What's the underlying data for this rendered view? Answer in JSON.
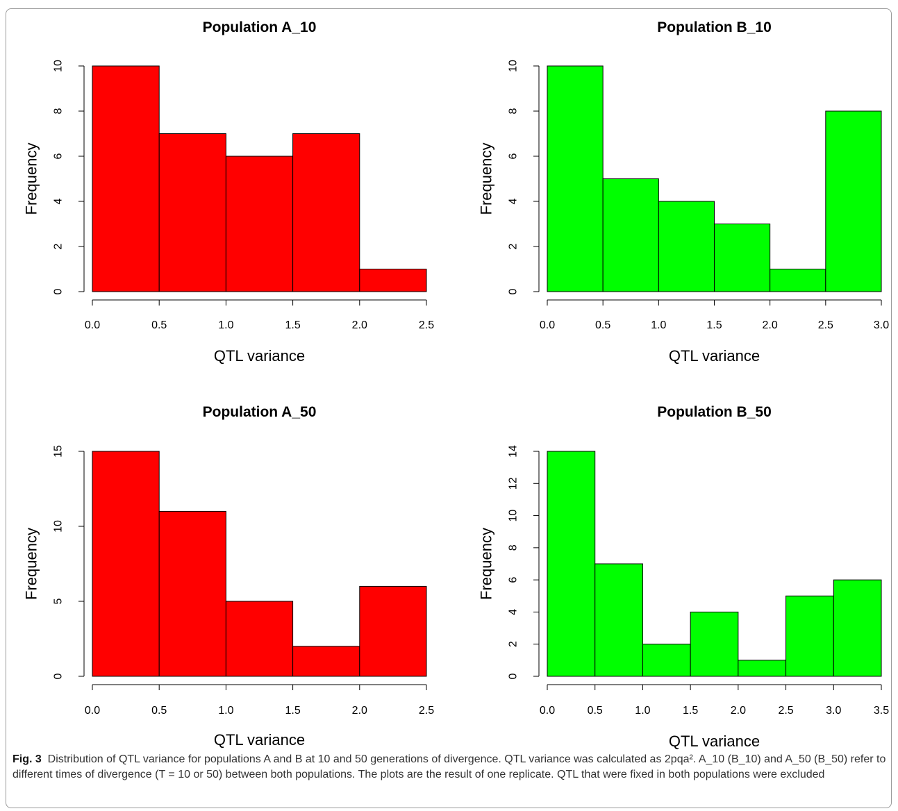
{
  "chart_data": [
    {
      "id": "a10",
      "type": "bar",
      "title": "Population A_10",
      "xlabel": "QTL variance",
      "ylabel": "Frequency",
      "bins": [
        [
          0.0,
          0.5
        ],
        [
          0.5,
          1.0
        ],
        [
          1.0,
          1.5
        ],
        [
          1.5,
          2.0
        ],
        [
          2.0,
          2.5
        ]
      ],
      "values": [
        10,
        7,
        6,
        7,
        1
      ],
      "xlim": [
        0,
        2.5
      ],
      "ylim": [
        0,
        10
      ],
      "xticks": [
        "0.0",
        "0.5",
        "1.0",
        "1.5",
        "2.0",
        "2.5"
      ],
      "yticks": [
        "0",
        "2",
        "4",
        "6",
        "8",
        "10"
      ],
      "color": "#ff0000"
    },
    {
      "id": "b10",
      "type": "bar",
      "title": "Population B_10",
      "xlabel": "QTL variance",
      "ylabel": "Frequency",
      "bins": [
        [
          0.0,
          0.5
        ],
        [
          0.5,
          1.0
        ],
        [
          1.0,
          1.5
        ],
        [
          1.5,
          2.0
        ],
        [
          2.0,
          2.5
        ],
        [
          2.5,
          3.0
        ]
      ],
      "values": [
        10,
        5,
        4,
        3,
        1,
        8
      ],
      "xlim": [
        0,
        3.0
      ],
      "ylim": [
        0,
        10
      ],
      "xticks": [
        "0.0",
        "0.5",
        "1.0",
        "1.5",
        "2.0",
        "2.5",
        "3.0"
      ],
      "yticks": [
        "0",
        "2",
        "4",
        "6",
        "8",
        "10"
      ],
      "color": "#00ff00"
    },
    {
      "id": "a50",
      "type": "bar",
      "title": "Population A_50",
      "xlabel": "QTL variance",
      "ylabel": "Frequency",
      "bins": [
        [
          0.0,
          0.5
        ],
        [
          0.5,
          1.0
        ],
        [
          1.0,
          1.5
        ],
        [
          1.5,
          2.0
        ],
        [
          2.0,
          2.5
        ]
      ],
      "values": [
        15,
        11,
        5,
        2,
        6
      ],
      "xlim": [
        0,
        2.5
      ],
      "ylim": [
        0,
        15
      ],
      "xticks": [
        "0.0",
        "0.5",
        "1.0",
        "1.5",
        "2.0",
        "2.5"
      ],
      "yticks": [
        "0",
        "5",
        "10",
        "15"
      ],
      "color": "#ff0000"
    },
    {
      "id": "b50",
      "type": "bar",
      "title": "Population B_50",
      "xlabel": "QTL variance",
      "ylabel": "Frequency",
      "bins": [
        [
          0.0,
          0.5
        ],
        [
          0.5,
          1.0
        ],
        [
          1.0,
          1.5
        ],
        [
          1.5,
          2.0
        ],
        [
          2.0,
          2.5
        ],
        [
          2.5,
          3.0
        ],
        [
          3.0,
          3.5
        ]
      ],
      "values": [
        14,
        7,
        2,
        4,
        1,
        5,
        6
      ],
      "xlim": [
        0,
        3.5
      ],
      "ylim": [
        0,
        14
      ],
      "xticks": [
        "0.0",
        "0.5",
        "1.0",
        "1.5",
        "2.0",
        "2.5",
        "3.0",
        "3.5"
      ],
      "yticks": [
        "0",
        "2",
        "4",
        "6",
        "8",
        "10",
        "12",
        "14"
      ],
      "color": "#00ff00"
    }
  ],
  "caption": {
    "label": "Fig. 3",
    "text": "Distribution of QTL variance for populations A and B at 10 and 50 generations of divergence. QTL variance was calculated as 2pqa². A_10 (B_10) and A_50 (B_50) refer to different times of divergence (T = 10 or 50) between both populations. The plots are the result of one replicate. QTL that were fixed in both populations were excluded"
  }
}
